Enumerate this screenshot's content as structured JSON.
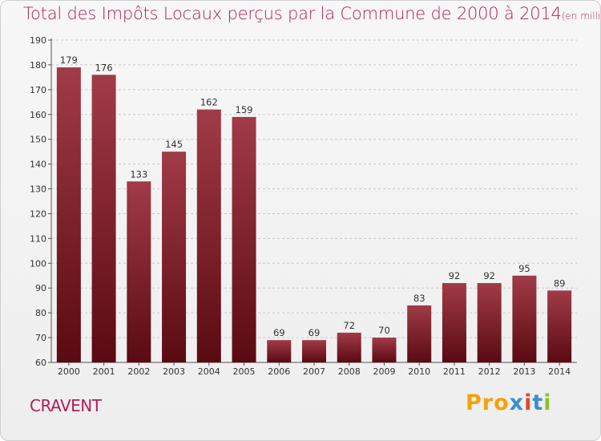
{
  "title": "Total des Impôts Locaux perçus par la Commune de 2000 à 2014",
  "unit_note": "(en milliers d'€)",
  "commune": "CRAVENT",
  "logo": {
    "text": "Proxiti",
    "parts": [
      "Pro",
      "x",
      "i",
      "t",
      "i"
    ]
  },
  "colors": {
    "bar_top": "#a13b48",
    "bar_bottom": "#5a0a12",
    "title": "#b0205a"
  },
  "chart_data": {
    "type": "bar",
    "title": "Total des Impôts Locaux perçus par la Commune de 2000 à 2014",
    "ylabel": "en milliers d'€",
    "categories": [
      "2000",
      "2001",
      "2002",
      "2003",
      "2004",
      "2005",
      "2006",
      "2007",
      "2008",
      "2009",
      "2010",
      "2011",
      "2012",
      "2013",
      "2014"
    ],
    "values": [
      179,
      176,
      133,
      145,
      162,
      159,
      69,
      69,
      72,
      70,
      83,
      92,
      92,
      95,
      89
    ],
    "ylim": [
      60,
      190
    ],
    "yticks": [
      60,
      70,
      80,
      90,
      100,
      110,
      120,
      130,
      140,
      150,
      160,
      170,
      180,
      190
    ],
    "grid": true
  }
}
